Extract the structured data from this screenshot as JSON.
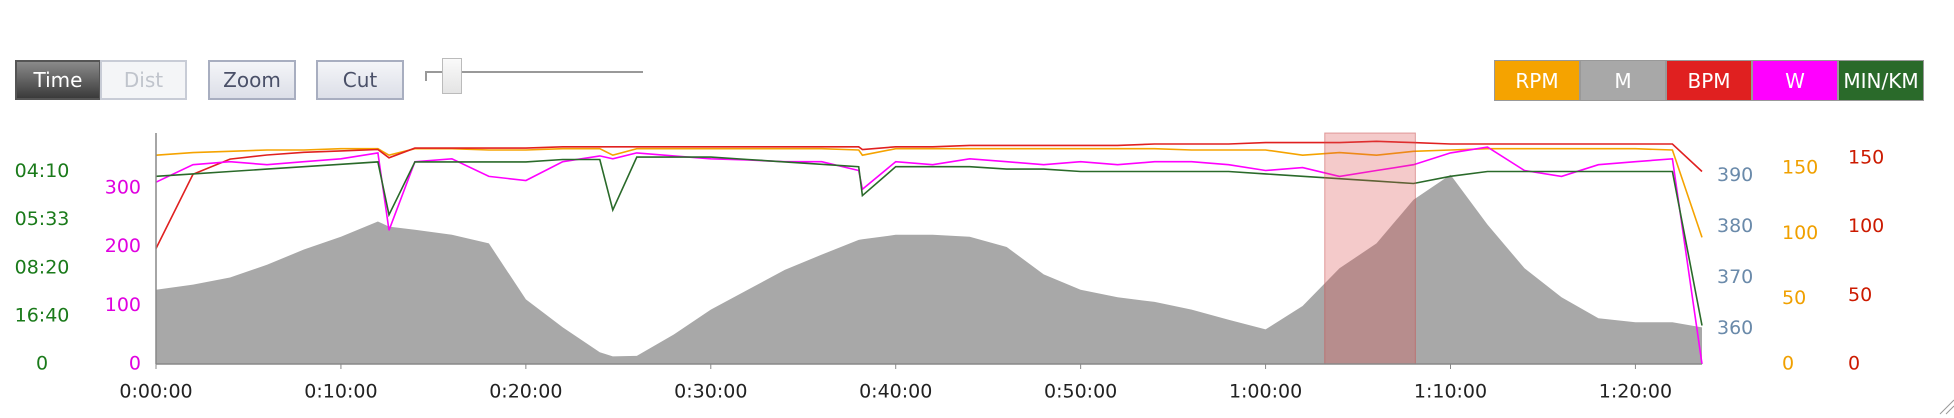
{
  "controls": {
    "buttons": [
      "Time",
      "Dist",
      "Zoom",
      "Cut"
    ]
  },
  "chart_data": {
    "type": "line",
    "x": [
      0,
      2,
      4,
      6,
      8,
      10,
      12,
      12.6,
      14,
      16,
      18,
      20,
      22,
      24,
      24.7,
      26,
      28,
      30,
      32,
      34,
      36,
      38,
      38.2,
      40,
      42,
      44,
      46,
      48,
      50,
      52,
      54,
      56,
      58,
      60,
      62,
      64,
      66,
      68,
      70,
      72,
      74,
      76,
      78,
      80,
      82,
      83.6
    ],
    "xlim": [
      0,
      83.6
    ],
    "xticks": [
      {
        "value": 0,
        "label": "0:00:00"
      },
      {
        "value": 10,
        "label": "0:10:00"
      },
      {
        "value": 20,
        "label": "0:20:00"
      },
      {
        "value": 30,
        "label": "0:30:00"
      },
      {
        "value": 40,
        "label": "0:40:00"
      },
      {
        "value": 50,
        "label": "0:50:00"
      },
      {
        "value": 60,
        "label": "1:00:00"
      },
      {
        "value": 70,
        "label": "1:10:00"
      },
      {
        "value": 80,
        "label": "1:20:00"
      }
    ],
    "selection": [
      63.2,
      68.1
    ],
    "series": [
      {
        "name": "RPM",
        "color": "#f5a300",
        "kind": "line",
        "ylim": [
          0,
          177
        ],
        "yticks": [
          0,
          50,
          100,
          150
        ],
        "values": [
          160,
          162,
          163,
          164,
          164,
          165,
          165,
          160,
          165,
          165,
          164,
          164,
          165,
          165,
          160,
          165,
          165,
          165,
          165,
          165,
          165,
          164,
          160,
          165,
          165,
          165,
          165,
          165,
          165,
          165,
          165,
          164,
          164,
          164,
          160,
          162,
          160,
          163,
          164,
          165,
          165,
          165,
          165,
          165,
          164,
          97
        ]
      },
      {
        "name": "M",
        "color": "#a8a8a8",
        "kind": "area",
        "ylim": [
          353,
          398.4
        ],
        "yticks": [
          360,
          370,
          380,
          390
        ],
        "values": [
          367.6,
          368.6,
          370,
          372.5,
          375.5,
          378,
          381,
          380,
          379.4,
          378.4,
          376.7,
          365.7,
          360.2,
          355.3,
          354.5,
          354.6,
          358.8,
          363.7,
          367.6,
          371.5,
          374.5,
          377.4,
          377.5,
          378.4,
          378.4,
          378,
          376,
          370.6,
          367.6,
          366.1,
          365.2,
          363.7,
          361.7,
          359.8,
          364.4,
          371.8,
          376.7,
          385.3,
          390.2,
          380.4,
          371.8,
          366.1,
          362,
          361.2,
          361.2,
          360.2
        ]
      },
      {
        "name": "BPM",
        "color": "#e02020",
        "kind": "line",
        "ylim": [
          0,
          168
        ],
        "yticks": [
          0,
          50,
          100,
          150
        ],
        "values": [
          84,
          138,
          149,
          152,
          154,
          155,
          156,
          150,
          157,
          157,
          157,
          157,
          158,
          158,
          158,
          158,
          158,
          158,
          158,
          158,
          158,
          158,
          156,
          158,
          158,
          159,
          159,
          159,
          159,
          159,
          160,
          160,
          160,
          161,
          161,
          161,
          162,
          161,
          160,
          160,
          160,
          160,
          160,
          160,
          160,
          140
        ]
      },
      {
        "name": "W",
        "color": "#ff00ff",
        "kind": "line",
        "ylim": [
          0,
          394
        ],
        "yticks": [
          0,
          100,
          200,
          300
        ],
        "values": [
          310,
          340,
          345,
          340,
          345,
          350,
          360,
          228,
          345,
          350,
          320,
          313,
          345,
          355,
          350,
          360,
          355,
          350,
          348,
          345,
          345,
          330,
          298,
          345,
          340,
          350,
          345,
          340,
          345,
          340,
          345,
          345,
          340,
          330,
          335,
          320,
          330,
          340,
          360,
          370,
          330,
          320,
          340,
          345,
          350,
          0
        ]
      },
      {
        "name": "MIN/KM",
        "color": "#2a6a2a",
        "kind": "line",
        "ylim": [
          0,
          4.8
        ],
        "yticks": [
          0,
          {
            "value": 1,
            "label": "16:40"
          },
          {
            "value": 2,
            "label": "08:20"
          },
          {
            "value": 3,
            "label": "05:33"
          },
          {
            "value": 4,
            "label": "04:10"
          }
        ],
        "values": [
          3.9,
          3.95,
          4.0,
          4.05,
          4.1,
          4.15,
          4.2,
          3.1,
          4.2,
          4.2,
          4.2,
          4.2,
          4.25,
          4.25,
          3.2,
          4.3,
          4.3,
          4.3,
          4.25,
          4.2,
          4.15,
          4.1,
          3.5,
          4.1,
          4.1,
          4.1,
          4.05,
          4.05,
          4.0,
          4.0,
          4.0,
          4.0,
          4.0,
          3.95,
          3.9,
          3.85,
          3.8,
          3.75,
          3.9,
          4.0,
          4.0,
          4.0,
          4.0,
          4.0,
          4.0,
          0.8
        ]
      }
    ]
  }
}
